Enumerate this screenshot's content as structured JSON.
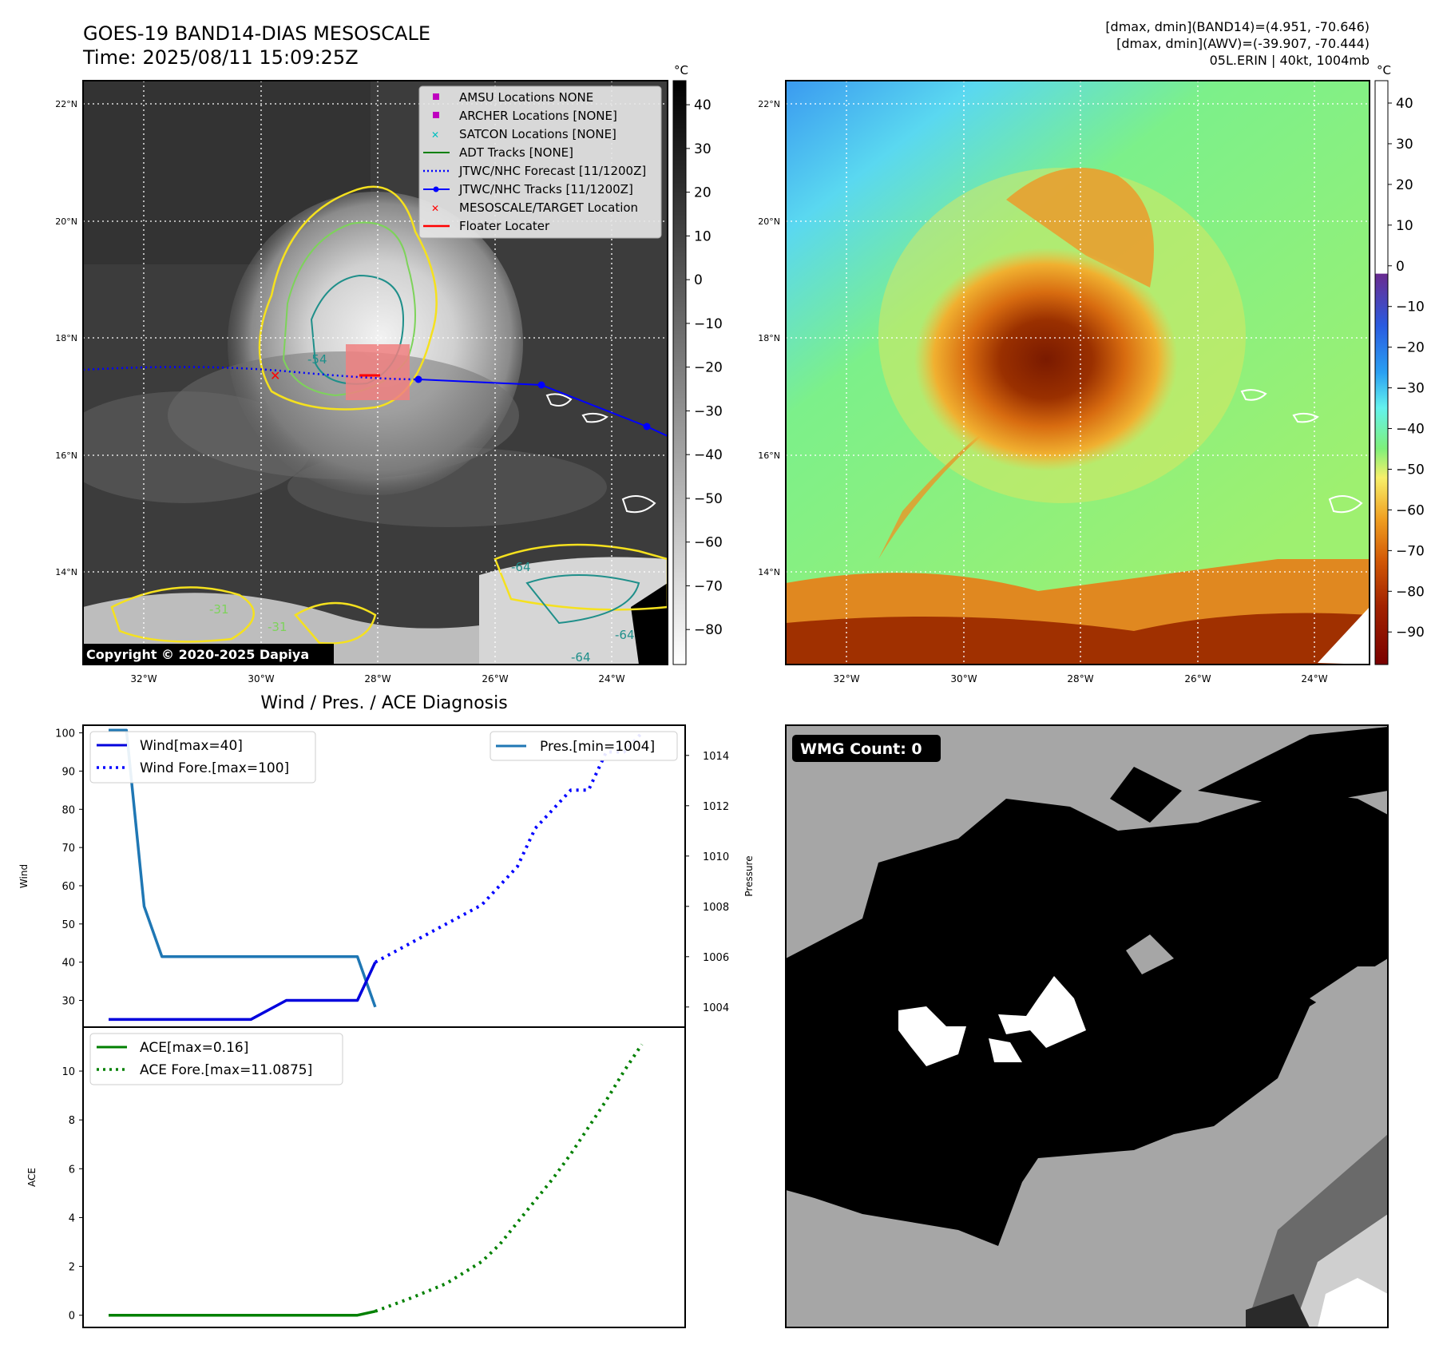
{
  "header": {
    "title_line1": "GOES-19 BAND14-DIAS MESOSCALE",
    "title_line2": "Time: 2025/08/11 15:09:25Z",
    "info_line1": "[dmax, dmin](BAND14)=(4.951, -70.646)",
    "info_line2": "[dmax, dmin](AWV)=(-39.907, -70.444)",
    "info_line3": "05L.ERIN | 40kt, 1004mb"
  },
  "maps": {
    "lat_labels": [
      "22°N",
      "20°N",
      "18°N",
      "16°N",
      "14°N"
    ],
    "lon_labels": [
      "32°W",
      "30°W",
      "28°W",
      "26°W",
      "24°W"
    ],
    "contour_labels": [
      "-54",
      "-31",
      "-31",
      "-64",
      "-64",
      "-64"
    ],
    "copyright": "Copyright © 2020-2025 Dapiya",
    "ir_colorbar": {
      "unit": "°C",
      "ticks": [
        "40",
        "30",
        "20",
        "10",
        "0",
        "−10",
        "−20",
        "−30",
        "−40",
        "−50",
        "−60",
        "−70",
        "−80"
      ]
    },
    "awv_colorbar": {
      "unit": "°C",
      "ticks": [
        "40",
        "30",
        "20",
        "10",
        "0",
        "−10",
        "−20",
        "−30",
        "−40",
        "−50",
        "−60",
        "−70",
        "−80",
        "−90"
      ]
    },
    "legend": [
      {
        "label": "AMSU Locations NONE",
        "marker": "square",
        "color": "#bf00bf"
      },
      {
        "label": "ARCHER Locations [NONE]",
        "marker": "square",
        "color": "#bf00bf"
      },
      {
        "label": "SATCON Locations [NONE]",
        "marker": "x",
        "color": "#00bfbf"
      },
      {
        "label": "ADT Tracks [NONE]",
        "marker": "line",
        "color": "#008000"
      },
      {
        "label": "JTWC/NHC Forecast [11/1200Z]",
        "marker": "dotted",
        "color": "#0000ff"
      },
      {
        "label": "JTWC/NHC Tracks [11/1200Z]",
        "marker": "line-dot",
        "color": "#0000ff"
      },
      {
        "label": "MESOSCALE/TARGET Location",
        "marker": "x",
        "color": "#ff0000"
      },
      {
        "label": "Floater Locater",
        "marker": "line",
        "color": "#ff0000"
      }
    ]
  },
  "wmg": {
    "label": "WMG Count: 0"
  },
  "chart_data": [
    {
      "type": "line",
      "title": "Wind / Pres. / ACE Diagnosis",
      "ylabel": "Wind",
      "y2label": "Pressure",
      "xlim": [
        0,
        31
      ],
      "ylim": [
        23,
        102
      ],
      "y2lim": [
        1003.2,
        1015.2
      ],
      "yticks": [
        30,
        40,
        50,
        60,
        70,
        80,
        90,
        100
      ],
      "y2ticks": [
        1004,
        1006,
        1008,
        1010,
        1012,
        1014
      ],
      "series": [
        {
          "name": "Wind[max=40]",
          "color": "#0000dd",
          "style": "solid",
          "axis": "left",
          "x": [
            0,
            6,
            8,
            10,
            12,
            14,
            15
          ],
          "values": [
            25,
            25,
            25,
            30,
            30,
            30,
            40
          ]
        },
        {
          "name": "Wind Fore.[max=100]",
          "color": "#0000ff",
          "style": "dotted",
          "axis": "left",
          "x": [
            15,
            17,
            19,
            21,
            23,
            24,
            25,
            26,
            27,
            28,
            29,
            30
          ],
          "values": [
            40,
            45,
            50,
            55,
            65,
            75,
            80,
            85,
            85,
            95,
            95,
            100
          ]
        },
        {
          "name": "Pres.[min=1004]",
          "color": "#1f77b4",
          "style": "solid",
          "axis": "right",
          "x": [
            0,
            1,
            2,
            3,
            5,
            6,
            7,
            8,
            9,
            10,
            11,
            12,
            13,
            14,
            15
          ],
          "values": [
            1015,
            1015,
            1008,
            1006,
            1006,
            1006,
            1006,
            1006,
            1006,
            1006,
            1006,
            1006,
            1006,
            1006,
            1004
          ]
        }
      ],
      "legend_left": [
        "Wind[max=40]",
        "Wind Fore.[max=100]"
      ],
      "legend_right": [
        "Pres.[min=1004]"
      ]
    },
    {
      "type": "line",
      "ylabel": "ACE",
      "xlim": [
        0,
        31
      ],
      "ylim": [
        -0.5,
        11.8
      ],
      "yticks": [
        0,
        2,
        4,
        6,
        8,
        10
      ],
      "series": [
        {
          "name": "ACE[max=0.16]",
          "color": "#008000",
          "style": "solid",
          "x": [
            0,
            2,
            4,
            6,
            8,
            10,
            12,
            14,
            15
          ],
          "values": [
            0,
            0,
            0,
            0,
            0,
            0,
            0,
            0,
            0.16
          ]
        },
        {
          "name": "ACE Fore.[max=11.0875]",
          "color": "#008000",
          "style": "dotted",
          "x": [
            15,
            17,
            19,
            21,
            22,
            23,
            24,
            25,
            26,
            27,
            28,
            29,
            30
          ],
          "values": [
            0.16,
            0.7,
            1.3,
            2.2,
            2.9,
            3.8,
            4.7,
            5.6,
            6.6,
            7.7,
            8.8,
            10.0,
            11.09
          ]
        }
      ],
      "legend": [
        "ACE[max=0.16]",
        "ACE Fore.[max=11.0875]"
      ]
    }
  ]
}
